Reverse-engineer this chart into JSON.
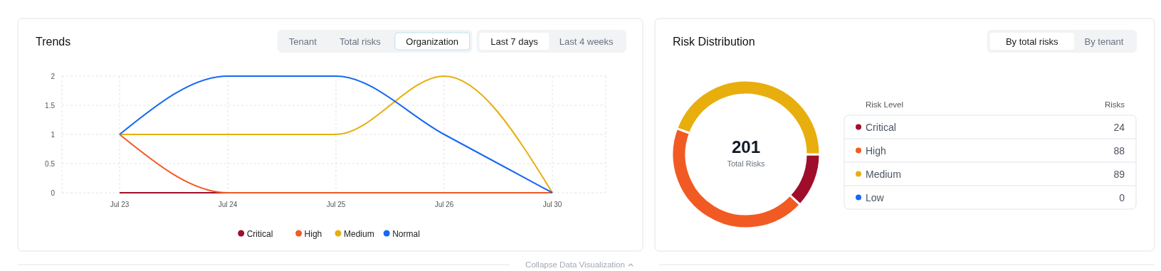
{
  "chart_data": [
    {
      "type": "line",
      "title": "Trends",
      "categories": [
        "Jul 23",
        "Jul 24",
        "Jul 25",
        "Jul 26",
        "Jul 30"
      ],
      "series": [
        {
          "name": "Critical",
          "color": "#a00d2a",
          "values": [
            0,
            0,
            null,
            null,
            null
          ]
        },
        {
          "name": "High",
          "color": "#f25a23",
          "values": [
            1,
            0,
            0,
            0,
            0
          ]
        },
        {
          "name": "Medium",
          "color": "#e8ae0e",
          "values": [
            1,
            1,
            1,
            2,
            0
          ]
        },
        {
          "name": "Normal",
          "color": "#1668f5",
          "values": [
            1,
            2,
            2,
            1,
            0
          ]
        }
      ],
      "ylim": [
        0,
        2
      ],
      "yticks": [
        0,
        0.5,
        1,
        1.5,
        2
      ],
      "grid": true,
      "legend": "bottom",
      "annotations": [
        "Tenant",
        "Total risks",
        "Organization",
        "Last 7 days",
        "Last 4 weeks",
        "Collapse Data Visualization"
      ]
    },
    {
      "type": "donut",
      "title": "Risk Distribution",
      "categories": [
        "Critical",
        "High",
        "Medium",
        "Low"
      ],
      "values": [
        24,
        88,
        89,
        0
      ],
      "colors": [
        "#a00d2a",
        "#f25a23",
        "#e8ae0e",
        "#1668f5"
      ],
      "legend": "right",
      "value_labels": [
        "24",
        "88",
        "89",
        "0"
      ],
      "annotations": [
        "By total risks",
        "By tenant",
        "201",
        "Total Risks",
        "Risk Level",
        "Risks"
      ]
    }
  ]
}
